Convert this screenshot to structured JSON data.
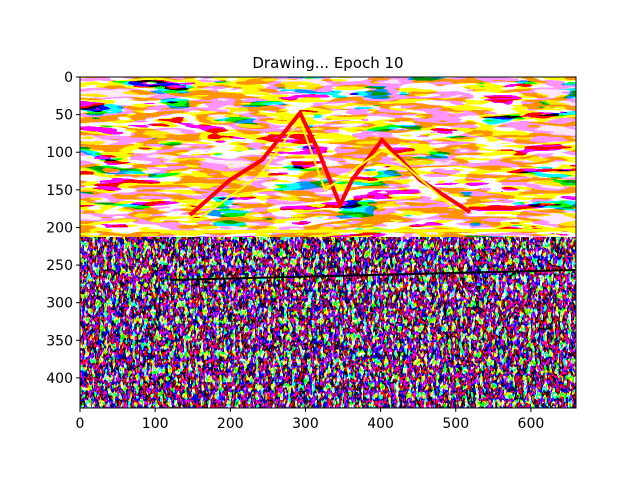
{
  "chart_data": {
    "type": "image",
    "title": "Drawing... Epoch 10",
    "xlim": [
      0,
      660
    ],
    "ylim": [
      440,
      0
    ],
    "xticks": [
      0,
      100,
      200,
      300,
      400,
      500,
      600
    ],
    "yticks": [
      0,
      50,
      100,
      150,
      200,
      250,
      300,
      350,
      400
    ]
  }
}
